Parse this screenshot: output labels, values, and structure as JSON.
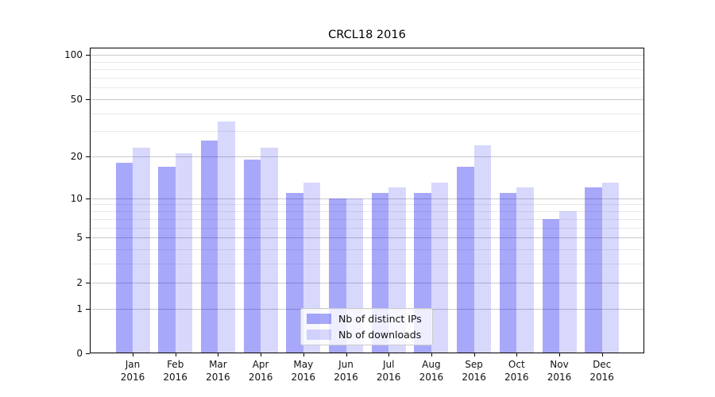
{
  "chart_data": {
    "type": "bar",
    "title": "CRCL18 2016",
    "categories": [
      "Jan",
      "Feb",
      "Mar",
      "Apr",
      "May",
      "Jun",
      "Jul",
      "Aug",
      "Sep",
      "Oct",
      "Nov",
      "Dec"
    ],
    "year_label": "2016",
    "series": [
      {
        "name": "Nb of distinct IPs",
        "color": "#0000f057",
        "values": [
          18,
          17,
          26,
          19,
          11,
          10,
          11,
          11,
          17,
          11,
          7,
          12
        ]
      },
      {
        "name": "Nb of downloads",
        "color": "#0000f027",
        "values": [
          23,
          21,
          35,
          23,
          13,
          10,
          12,
          13,
          24,
          12,
          8,
          13
        ]
      }
    ],
    "xlabel": "",
    "ylabel": "",
    "y_scale": "log1p",
    "ylim": [
      0,
      112
    ],
    "y_major_ticks": [
      0,
      1,
      2,
      5,
      10,
      20,
      50,
      100
    ],
    "y_minor_ticks": [
      3,
      4,
      6,
      7,
      8,
      9,
      30,
      40,
      60,
      70,
      80,
      90
    ],
    "grid": true,
    "legend_position": "lower center",
    "grid_major_color": "#c9c9c9",
    "grid_minor_color": "#e9e9e9",
    "axis_color": "#000000"
  }
}
